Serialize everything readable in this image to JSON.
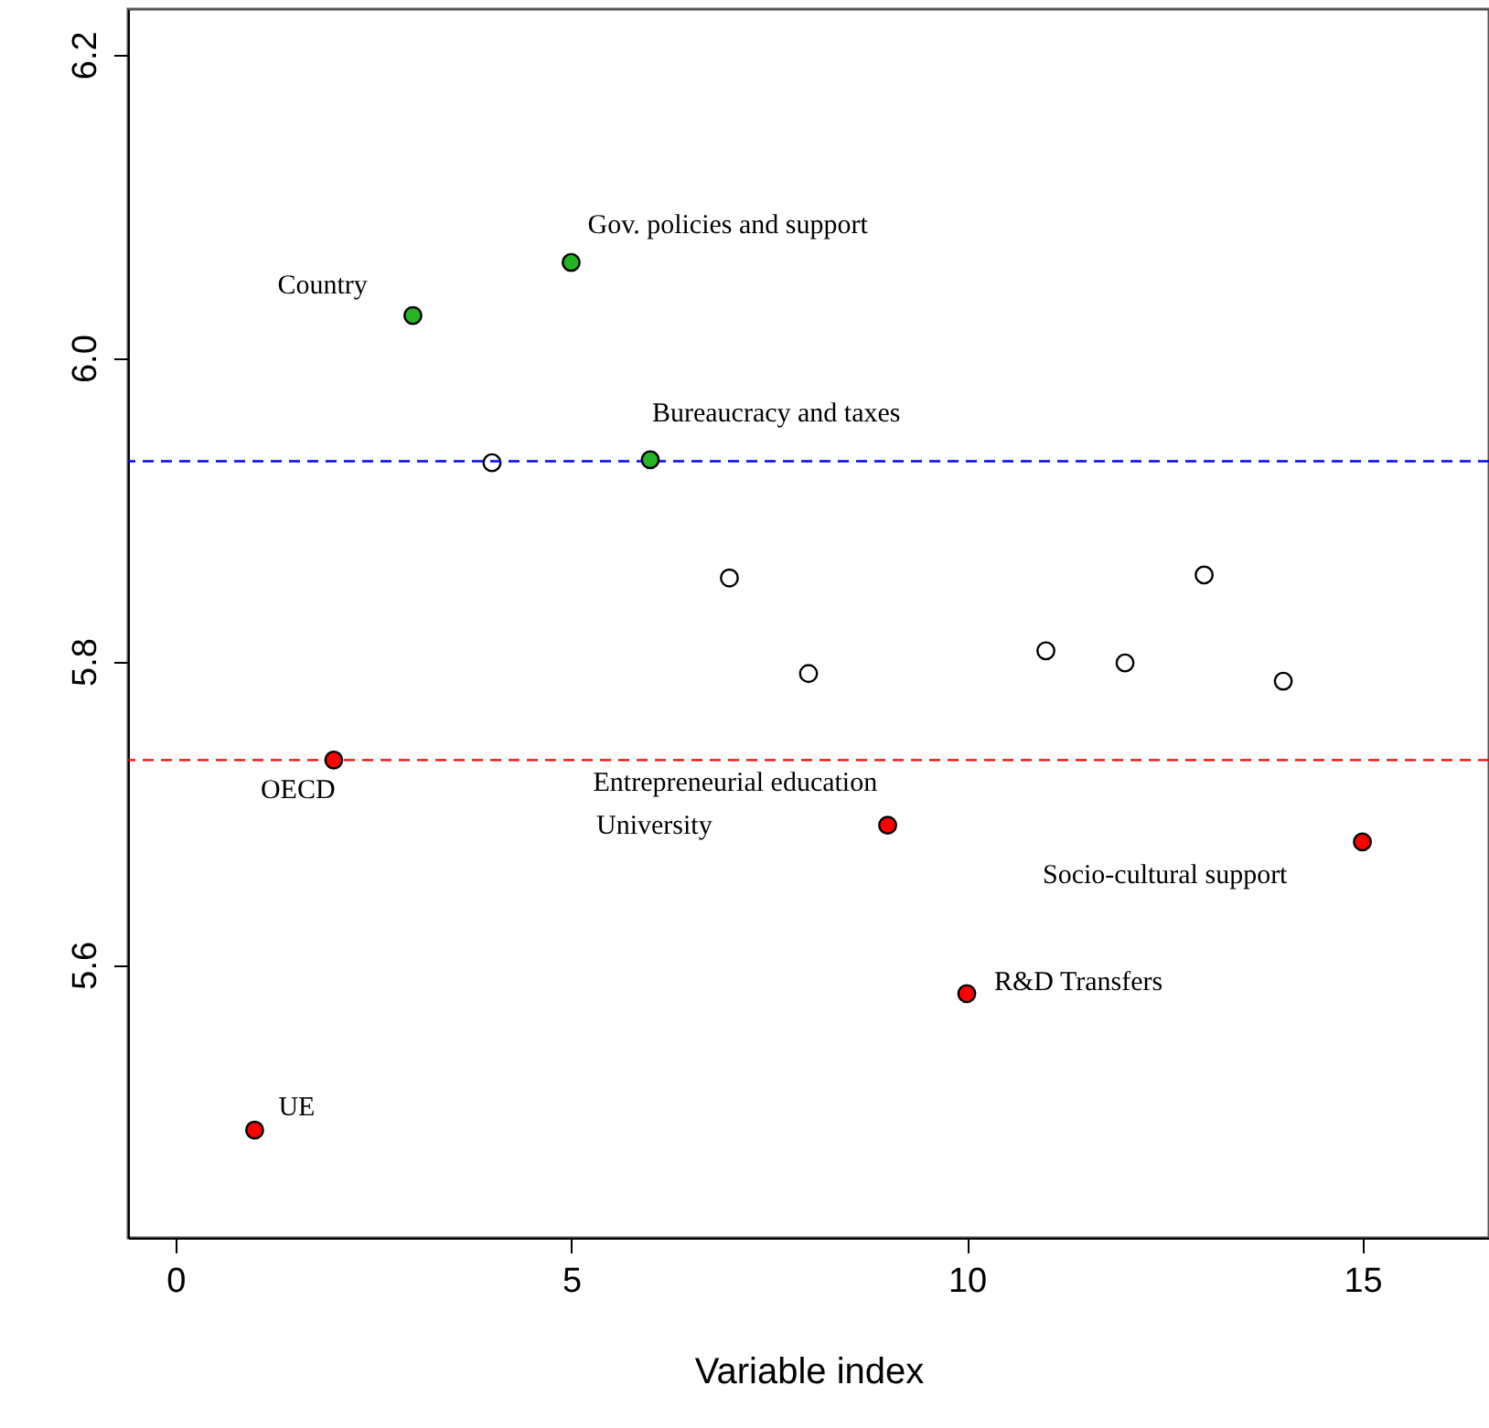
{
  "chart_data": {
    "type": "scatter",
    "xlabel": "Variable index",
    "xlim": [
      -0.6,
      16.6
    ],
    "ylim": [
      5.42,
      6.23
    ],
    "xticks": [
      0,
      5,
      10,
      15
    ],
    "yticks": [
      {
        "value": 5.6,
        "label": "5.6"
      },
      {
        "value": 5.8,
        "label": "5.8"
      },
      {
        "value": 6,
        "label": "6.0"
      },
      {
        "value": 6.2,
        "label": "6.2"
      }
    ],
    "marker": "circle",
    "grid": false,
    "series": [
      {
        "color": "#ffffff",
        "x": [
          4,
          7,
          8,
          11,
          12,
          13,
          14
        ],
        "values": [
          5.931,
          5.855,
          5.792,
          5.807,
          5.799,
          5.857,
          5.787
        ]
      },
      {
        "color": "#22b422",
        "x": [
          3,
          5,
          6
        ],
        "values": [
          6.028,
          6.063,
          5.933
        ]
      },
      {
        "color": "#ff0000",
        "x": [
          1,
          2,
          9,
          10,
          15
        ],
        "values": [
          5.491,
          5.735,
          5.692,
          5.581,
          5.681
        ]
      }
    ],
    "ref_lines": [
      {
        "axis": "y",
        "value": 5.932,
        "color": "#0000ff",
        "line_style": "dashed"
      },
      {
        "axis": "y",
        "value": 5.735,
        "color": "#ff0000",
        "line_style": "dashed"
      }
    ],
    "annotations": [
      {
        "text": "Country",
        "x": 3,
        "y": 6.028
      },
      {
        "text": "Gov. policies and support",
        "x": 5,
        "y": 6.063
      },
      {
        "text": "Bureaucracy and taxes",
        "x": 6,
        "y": 5.933
      },
      {
        "text": "OECD",
        "x": 2,
        "y": 5.735
      },
      {
        "text": "Entrepreneurial education",
        "x": 9,
        "y": 5.692
      },
      "University",
      {
        "text": "R&D Transfers",
        "x": 10,
        "y": 5.581
      },
      "Socio-cultural support",
      {
        "text": "UE",
        "x": 1,
        "y": 5.491
      }
    ]
  }
}
